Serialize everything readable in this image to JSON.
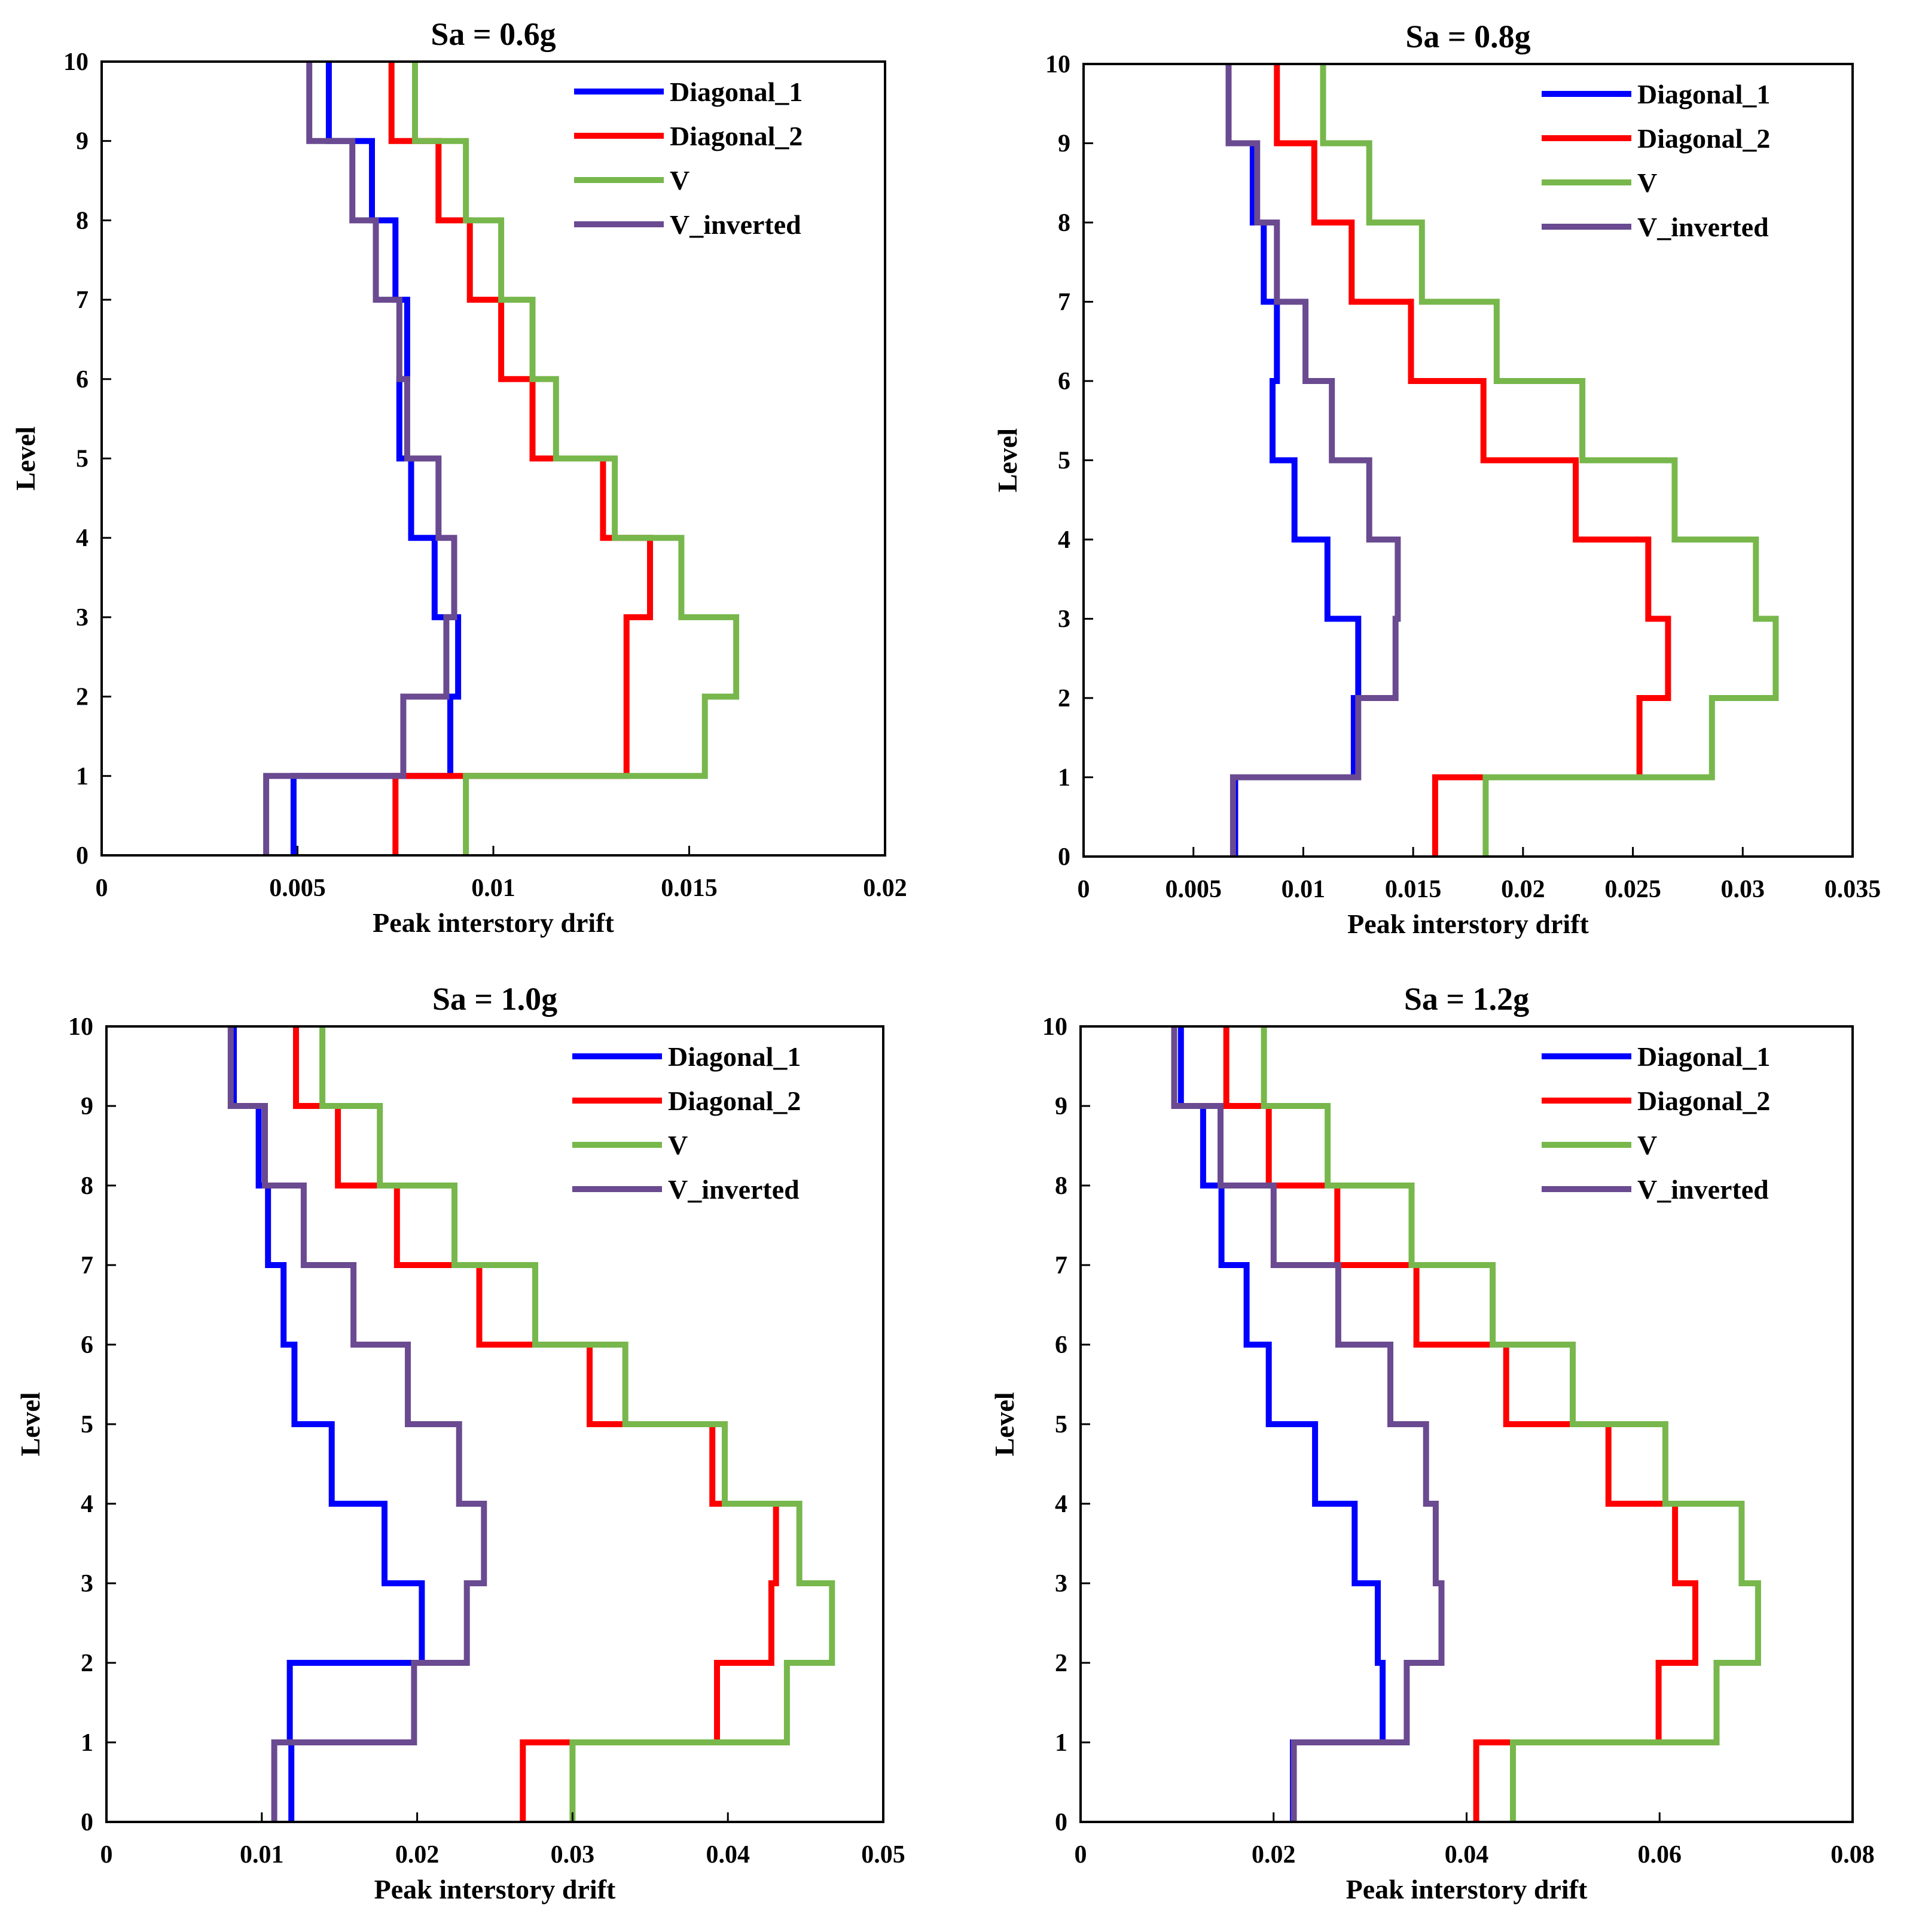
{
  "chart_data": [
    {
      "type": "line",
      "title": "Sa = 0.6g",
      "xlabel": "Peak interstory drift",
      "ylabel": "Level",
      "xlim": [
        0,
        0.02
      ],
      "ylim": [
        0,
        10
      ],
      "xticks": [
        0,
        0.005,
        0.01,
        0.015,
        0.02
      ],
      "xtick_labels": [
        "0",
        "0.005",
        "0.01",
        "0.015",
        "0.02"
      ],
      "yticks": [
        0,
        1,
        2,
        3,
        4,
        5,
        6,
        7,
        8,
        9,
        10
      ],
      "ytick_labels": [
        "0",
        "1",
        "2",
        "3",
        "4",
        "5",
        "6",
        "7",
        "8",
        "9",
        "10"
      ],
      "legend_position": "top-right",
      "series": [
        {
          "name": "Diagonal_1",
          "color": "#0000FF",
          "values": [
            0.0049,
            0.0089,
            0.0091,
            0.0085,
            0.0079,
            0.0076,
            0.0078,
            0.0075,
            0.0069,
            0.0058
          ]
        },
        {
          "name": "Diagonal_2",
          "color": "#FF0000",
          "values": [
            0.0075,
            0.0134,
            0.0134,
            0.014,
            0.0128,
            0.011,
            0.0102,
            0.0094,
            0.0086,
            0.0074
          ]
        },
        {
          "name": "V",
          "color": "#77B74C",
          "values": [
            0.0093,
            0.0154,
            0.0162,
            0.0148,
            0.0131,
            0.0116,
            0.011,
            0.0102,
            0.0093,
            0.008
          ]
        },
        {
          "name": "V_inverted",
          "color": "#6A4A90",
          "values": [
            0.0042,
            0.0077,
            0.0088,
            0.009,
            0.0086,
            0.0078,
            0.0076,
            0.007,
            0.0064,
            0.0053
          ]
        }
      ]
    },
    {
      "type": "line",
      "title": "Sa = 0.8g",
      "xlabel": "Peak interstory drift",
      "ylabel": "Level",
      "xlim": [
        0,
        0.035
      ],
      "ylim": [
        0,
        10
      ],
      "xticks": [
        0,
        0.005,
        0.01,
        0.015,
        0.02,
        0.025,
        0.03,
        0.035
      ],
      "xtick_labels": [
        "0",
        "0.005",
        "0.01",
        "0.015",
        "0.02",
        "0.025",
        "0.03",
        "0.035"
      ],
      "yticks": [
        0,
        1,
        2,
        3,
        4,
        5,
        6,
        7,
        8,
        9,
        10
      ],
      "ytick_labels": [
        "0",
        "1",
        "2",
        "3",
        "4",
        "5",
        "6",
        "7",
        "8",
        "9",
        "10"
      ],
      "legend_position": "top-right",
      "series": [
        {
          "name": "Diagonal_1",
          "color": "#0000FF",
          "values": [
            0.0069,
            0.0123,
            0.0125,
            0.0111,
            0.0096,
            0.0086,
            0.0088,
            0.0082,
            0.0077,
            0.0066
          ]
        },
        {
          "name": "Diagonal_2",
          "color": "#FF0000",
          "values": [
            0.016,
            0.0253,
            0.0266,
            0.0257,
            0.0224,
            0.0182,
            0.0149,
            0.0122,
            0.0105,
            0.0088
          ]
        },
        {
          "name": "V",
          "color": "#77B74C",
          "values": [
            0.0183,
            0.0286,
            0.0315,
            0.0306,
            0.0269,
            0.0227,
            0.0188,
            0.0154,
            0.013,
            0.0109
          ]
        },
        {
          "name": "V_inverted",
          "color": "#6A4A90",
          "values": [
            0.0068,
            0.0125,
            0.0142,
            0.0143,
            0.013,
            0.0113,
            0.0101,
            0.0088,
            0.0079,
            0.0066
          ]
        }
      ]
    },
    {
      "type": "line",
      "title": "Sa = 1.0g",
      "xlabel": "Peak interstory drift",
      "ylabel": "Level",
      "xlim": [
        0,
        0.05
      ],
      "ylim": [
        0,
        10
      ],
      "xticks": [
        0,
        0.01,
        0.02,
        0.03,
        0.04,
        0.05
      ],
      "xtick_labels": [
        "0",
        "0.01",
        "0.02",
        "0.03",
        "0.04",
        "0.05"
      ],
      "yticks": [
        0,
        1,
        2,
        3,
        4,
        5,
        6,
        7,
        8,
        9,
        10
      ],
      "ytick_labels": [
        "0",
        "1",
        "2",
        "3",
        "4",
        "5",
        "6",
        "7",
        "8",
        "9",
        "10"
      ],
      "legend_position": "top-right",
      "series": [
        {
          "name": "Diagonal_1",
          "color": "#0000FF",
          "values": [
            0.0119,
            0.0118,
            0.0203,
            0.0179,
            0.0145,
            0.0121,
            0.0114,
            0.0104,
            0.0098,
            0.0082
          ]
        },
        {
          "name": "Diagonal_2",
          "color": "#FF0000",
          "values": [
            0.0268,
            0.0393,
            0.0428,
            0.0431,
            0.039,
            0.0311,
            0.024,
            0.0187,
            0.0149,
            0.0122
          ]
        },
        {
          "name": "V",
          "color": "#77B74C",
          "values": [
            0.03,
            0.0438,
            0.0467,
            0.0446,
            0.0398,
            0.0334,
            0.0276,
            0.0224,
            0.0176,
            0.0139
          ]
        },
        {
          "name": "V_inverted",
          "color": "#6A4A90",
          "values": [
            0.0108,
            0.0198,
            0.0232,
            0.0243,
            0.0227,
            0.0194,
            0.0159,
            0.0127,
            0.0102,
            0.008
          ]
        }
      ]
    },
    {
      "type": "line",
      "title": "Sa = 1.2g",
      "xlabel": "Peak interstory drift",
      "ylabel": "Level",
      "xlim": [
        0,
        0.08
      ],
      "ylim": [
        0,
        10
      ],
      "xticks": [
        0,
        0.02,
        0.04,
        0.06,
        0.08
      ],
      "xtick_labels": [
        "0",
        "0.02",
        "0.04",
        "0.06",
        "0.08"
      ],
      "yticks": [
        0,
        1,
        2,
        3,
        4,
        5,
        6,
        7,
        8,
        9,
        10
      ],
      "ytick_labels": [
        "0",
        "1",
        "2",
        "3",
        "4",
        "5",
        "6",
        "7",
        "8",
        "9",
        "10"
      ],
      "legend_position": "top-right",
      "series": [
        {
          "name": "Diagonal_1",
          "color": "#0000FF",
          "values": [
            0.022,
            0.0313,
            0.0308,
            0.0284,
            0.0243,
            0.0195,
            0.0172,
            0.0146,
            0.0127,
            0.0104
          ]
        },
        {
          "name": "Diagonal_2",
          "color": "#FF0000",
          "values": [
            0.041,
            0.0599,
            0.0637,
            0.0616,
            0.0547,
            0.0441,
            0.0348,
            0.0266,
            0.0195,
            0.0151
          ]
        },
        {
          "name": "V",
          "color": "#77B74C",
          "values": [
            0.0448,
            0.0659,
            0.0702,
            0.0685,
            0.0606,
            0.051,
            0.0427,
            0.0343,
            0.0256,
            0.019
          ]
        },
        {
          "name": "V_inverted",
          "color": "#6A4A90",
          "values": [
            0.0221,
            0.0338,
            0.0374,
            0.0368,
            0.0358,
            0.0321,
            0.0267,
            0.02,
            0.0145,
            0.0097
          ]
        }
      ]
    }
  ]
}
